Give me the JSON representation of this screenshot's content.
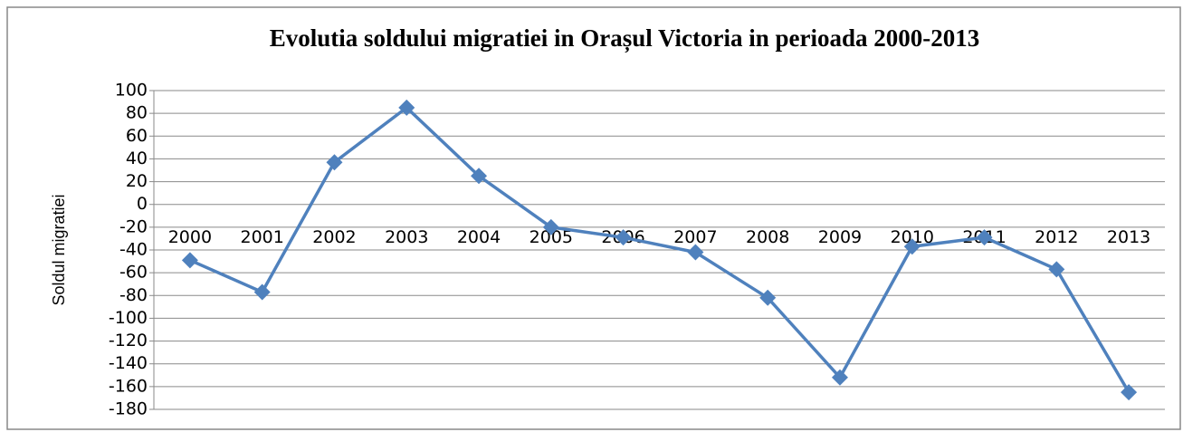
{
  "chart_data": {
    "type": "line",
    "title": "Evolutia soldului migratiei in Orașul Victoria in perioada 2000-2013",
    "y_label": "Soldul migratiei",
    "categories": [
      "2000",
      "2001",
      "2002",
      "2003",
      "2004",
      "2005",
      "2006",
      "2007",
      "2008",
      "2009",
      "2010",
      "2011",
      "2012",
      "2013"
    ],
    "series": [
      {
        "name": "Soldul migratiei",
        "color": "#4f81bd",
        "values": [
          -49,
          -77,
          37,
          85,
          25,
          -20,
          -29,
          -42,
          -82,
          -152,
          -37,
          -29,
          -57,
          -165
        ]
      }
    ],
    "ylim": [
      -180,
      100
    ],
    "yticks": [
      100,
      80,
      60,
      40,
      20,
      0,
      -20,
      -40,
      -60,
      -80,
      -100,
      -120,
      -140,
      -160,
      -180
    ],
    "grid": true
  }
}
